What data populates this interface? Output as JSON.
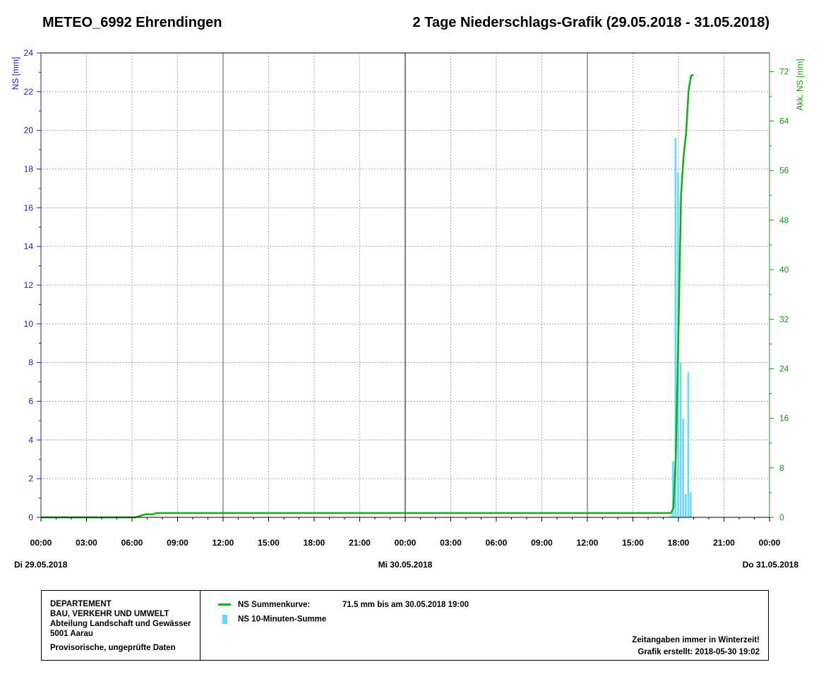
{
  "header": {
    "station": "METEO_6992 Ehrendingen",
    "title": "2 Tage Niederschlags-Grafik (29.05.2018 - 31.05.2018)"
  },
  "chart_data": {
    "type": "bar",
    "y_left_label": "NS [mm]",
    "y_right_label": "Akk. NS [mm]",
    "y_left_range": [
      0,
      24
    ],
    "y_left_ticks": [
      0,
      2,
      4,
      6,
      8,
      10,
      12,
      14,
      16,
      18,
      20,
      22,
      24
    ],
    "y_right_range": [
      0,
      75
    ],
    "y_right_ticks": [
      0,
      8,
      16,
      24,
      32,
      40,
      48,
      56,
      64,
      72
    ],
    "x_range_hours": [
      0,
      48
    ],
    "x_tick_labels": [
      "00:00",
      "03:00",
      "06:00",
      "09:00",
      "12:00",
      "15:00",
      "18:00",
      "21:00",
      "00:00",
      "03:00",
      "06:00",
      "09:00",
      "12:00",
      "15:00",
      "18:00",
      "21:00",
      "00:00"
    ],
    "date_labels": [
      {
        "hour": 0,
        "text": "Di 29.05.2018"
      },
      {
        "hour": 24,
        "text": "Mi 30.05.2018"
      },
      {
        "hour": 48,
        "text": "Do 31.05.2018"
      }
    ],
    "grid": true,
    "series": [
      {
        "name": "NS 10-Minuten-Summe",
        "kind": "bar",
        "color": "#66d9ff",
        "points": [
          {
            "hour": 41.5,
            "value": 0.1
          },
          {
            "hour": 41.67,
            "value": 2.9
          },
          {
            "hour": 41.83,
            "value": 19.6
          },
          {
            "hour": 42.0,
            "value": 17.8
          },
          {
            "hour": 42.17,
            "value": 8.0
          },
          {
            "hour": 42.33,
            "value": 5.1
          },
          {
            "hour": 42.5,
            "value": 1.2
          },
          {
            "hour": 42.67,
            "value": 7.5
          },
          {
            "hour": 42.83,
            "value": 1.3
          }
        ]
      },
      {
        "name": "NS Summenkurve",
        "kind": "line",
        "color": "#10b010",
        "points": [
          {
            "hour": 0,
            "value": 0
          },
          {
            "hour": 6.2,
            "value": 0
          },
          {
            "hour": 6.9,
            "value": 0.5
          },
          {
            "hour": 7.1,
            "value": 0.5
          },
          {
            "hour": 7.4,
            "value": 0.5
          },
          {
            "hour": 7.6,
            "value": 0.7
          },
          {
            "hour": 41.5,
            "value": 0.7
          },
          {
            "hour": 41.67,
            "value": 1.5
          },
          {
            "hour": 41.83,
            "value": 10
          },
          {
            "hour": 42.0,
            "value": 30
          },
          {
            "hour": 42.17,
            "value": 52
          },
          {
            "hour": 42.33,
            "value": 58
          },
          {
            "hour": 42.5,
            "value": 62
          },
          {
            "hour": 42.67,
            "value": 69
          },
          {
            "hour": 42.83,
            "value": 71.3
          },
          {
            "hour": 43.0,
            "value": 71.5
          }
        ]
      }
    ]
  },
  "legend": {
    "org_lines": [
      "DEPARTEMENT",
      "BAU, VERKEHR UND UMWELT",
      "Abteilung Landschaft und Gewässer",
      "5001 Aarau"
    ],
    "provisional": "Provisorische, ungeprüfte Daten",
    "line_label": "NS Summenkurve:",
    "line_note": "71.5 mm bis am 30.05.2018 19:00",
    "bar_label": "NS 10-Minuten-Summe",
    "winter_note": "Zeitangaben immer in Winterzeit!",
    "created": "Grafik erstellt: 2018-05-30 19:02"
  }
}
